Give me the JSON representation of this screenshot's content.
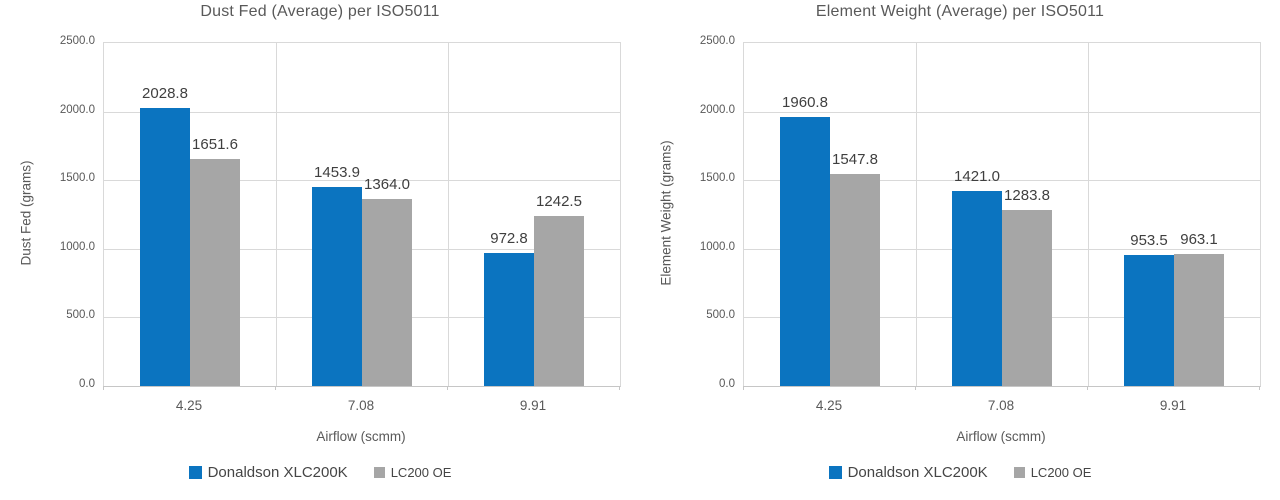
{
  "accent_colors": {
    "series_blue": "#0b74c0",
    "series_gray": "#a6a6a6",
    "gridline": "#d9d9d9",
    "text_gray": "#595959",
    "label_dark": "#3f3f3f"
  },
  "chart_data": [
    {
      "type": "bar",
      "title": "Dust Fed (Average) per ISO5011",
      "xlabel": "Airflow (scmm)",
      "ylabel": "Dust Fed (grams)",
      "categories": [
        "4.25",
        "7.08",
        "9.91"
      ],
      "series": [
        {
          "name": "Donaldson XLC200K",
          "color": "#0b74c0",
          "values": [
            2028.8,
            1453.9,
            972.8
          ]
        },
        {
          "name": "LC200 OE",
          "color": "#a6a6a6",
          "values": [
            1651.6,
            1364.0,
            1242.5
          ]
        }
      ],
      "ylim": [
        0,
        2500
      ],
      "yticks": [
        "2500.0",
        "2000.0",
        "1500.0",
        "1000.0",
        "500.0",
        "0.0"
      ],
      "grid": true,
      "legend_position": "bottom",
      "data_labels": true
    },
    {
      "type": "bar",
      "title": "Element Weight (Average) per ISO5011",
      "xlabel": "Airflow (scmm)",
      "ylabel": "Element Weight (grams)",
      "categories": [
        "4.25",
        "7.08",
        "9.91"
      ],
      "series": [
        {
          "name": "Donaldson XLC200K",
          "color": "#0b74c0",
          "values": [
            1960.8,
            1421.0,
            953.5
          ]
        },
        {
          "name": "LC200 OE",
          "color": "#a6a6a6",
          "values": [
            1547.8,
            1283.8,
            963.1
          ]
        }
      ],
      "ylim": [
        0,
        2500
      ],
      "yticks": [
        "2500.0",
        "2000.0",
        "1500.0",
        "1000.0",
        "500.0",
        "0.0"
      ],
      "grid": true,
      "legend_position": "bottom",
      "data_labels": true
    }
  ]
}
